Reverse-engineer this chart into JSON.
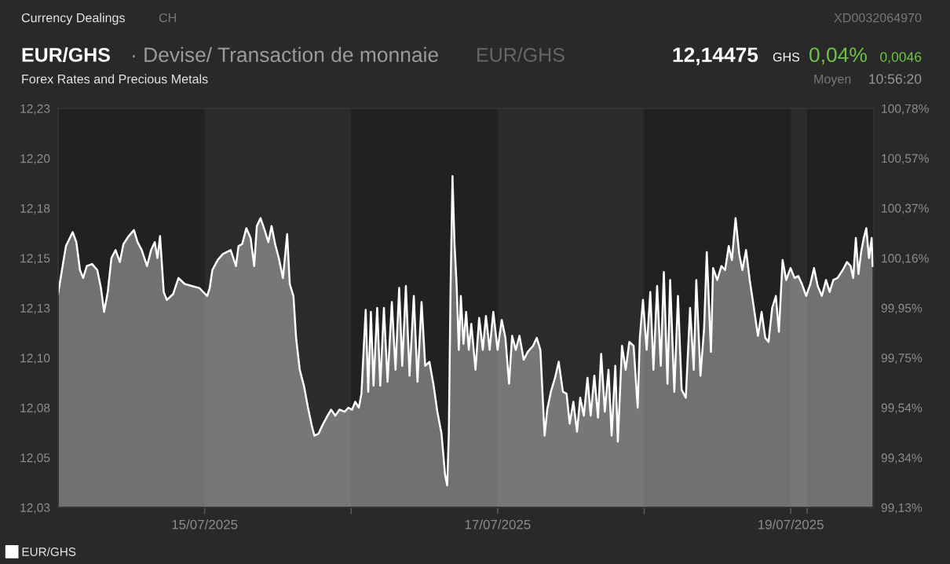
{
  "chart_data": {
    "type": "area",
    "title": "EUR/GHS",
    "subtitle": "· Devise/ Transaction de monnaie",
    "annotations": [
      "Currency Dealings",
      "CH",
      "XD0032064970",
      "EUR/GHS",
      "12,14475",
      "GHS",
      "0,04%",
      "0,0046",
      "Forex Rates and Precious Metals",
      "Moyen",
      "10:56:20"
    ],
    "x": [
      "2025-07-14T00:00",
      "2025-07-14T00:41",
      "2025-07-14T01:17",
      "2025-07-14T02:23",
      "2025-07-14T02:59",
      "2025-07-14T03:35",
      "2025-07-14T04:06",
      "2025-07-14T04:42",
      "2025-07-14T05:34",
      "2025-07-14T06:25",
      "2025-07-14T07:01",
      "2025-07-14T07:32",
      "2025-07-14T08:08",
      "2025-07-14T08:44",
      "2025-07-14T09:25",
      "2025-07-14T10:07",
      "2025-07-14T10:42",
      "2025-07-14T11:34",
      "2025-07-14T12:25",
      "2025-07-14T13:01",
      "2025-07-14T13:42",
      "2025-07-14T14:34",
      "2025-07-14T15:14",
      "2025-07-14T15:50",
      "2025-07-14T16:16",
      "2025-07-14T16:42",
      "2025-07-14T17:18",
      "2025-07-14T17:49",
      "2025-07-14T18:51",
      "2025-07-14T19:43",
      "2025-07-14T20:44",
      "2025-07-14T21:51",
      "2025-07-14T23:08",
      "2025-07-15T00:25",
      "2025-07-15T00:50",
      "2025-07-15T01:16",
      "2025-07-15T02:08",
      "2025-07-15T02:59",
      "2025-07-15T04:16",
      "2025-07-15T05:08",
      "2025-07-15T05:33",
      "2025-07-15T06:09",
      "2025-07-15T06:50",
      "2025-07-15T07:32",
      "2025-07-15T08:07",
      "2025-07-15T08:33",
      "2025-07-15T09:09",
      "2025-07-15T09:50",
      "2025-07-15T10:26",
      "2025-07-15T10:58",
      "2025-07-15T11:33",
      "2025-07-15T12:09",
      "2025-07-15T12:50",
      "2025-07-15T13:31",
      "2025-07-15T13:57",
      "2025-07-15T14:33",
      "2025-07-15T14:59",
      "2025-07-15T15:35",
      "2025-07-15T16:16",
      "2025-07-15T16:56",
      "2025-07-15T17:33",
      "2025-07-15T17:59",
      "2025-07-15T18:40",
      "2025-07-15T19:16",
      "2025-07-15T20:08",
      "2025-07-15T20:43",
      "2025-07-15T21:25",
      "2025-07-15T22:05",
      "2025-07-15T22:57",
      "2025-07-15T23:33",
      "2025-07-16T00:09",
      "2025-07-16T00:40",
      "2025-07-16T01:16",
      "2025-07-16T01:41",
      "2025-07-16T02:23",
      "2025-07-16T02:48",
      "2025-07-16T03:14",
      "2025-07-16T03:40",
      "2025-07-16T04:16",
      "2025-07-16T04:46",
      "2025-07-16T05:22",
      "2025-07-16T05:58",
      "2025-07-16T06:40",
      "2025-07-16T07:16",
      "2025-07-16T07:52",
      "2025-07-16T08:22",
      "2025-07-16T08:58",
      "2025-07-16T09:34",
      "2025-07-16T10:16",
      "2025-07-16T10:52",
      "2025-07-16T11:32",
      "2025-07-16T12:08",
      "2025-07-16T12:49",
      "2025-07-16T13:31",
      "2025-07-16T14:07",
      "2025-07-16T14:48",
      "2025-07-16T15:24",
      "2025-07-16T15:44",
      "2025-07-16T16:00",
      "2025-07-16T16:16",
      "2025-07-16T16:36",
      "2025-07-16T16:56",
      "2025-07-16T17:17",
      "2025-07-16T17:38",
      "2025-07-16T17:58",
      "2025-07-16T18:24",
      "2025-07-16T18:50",
      "2025-07-16T19:16",
      "2025-07-16T19:41",
      "2025-07-16T20:22",
      "2025-07-16T20:58",
      "2025-07-16T21:34",
      "2025-07-16T22:05",
      "2025-07-16T22:41",
      "2025-07-16T23:17",
      "2025-07-16T23:59",
      "2025-07-17T00:40",
      "2025-07-17T01:16",
      "2025-07-17T01:52",
      "2025-07-17T02:22",
      "2025-07-17T02:58",
      "2025-07-17T03:34",
      "2025-07-17T04:16",
      "2025-07-17T04:56",
      "2025-07-17T05:48",
      "2025-07-17T06:24",
      "2025-07-17T07:00",
      "2025-07-17T07:41",
      "2025-07-17T08:07",
      "2025-07-17T08:43",
      "2025-07-17T09:24",
      "2025-07-17T10:00",
      "2025-07-17T10:41",
      "2025-07-17T11:17",
      "2025-07-17T11:48",
      "2025-07-17T12:24",
      "2025-07-17T13:00",
      "2025-07-17T13:31",
      "2025-07-17T14:07",
      "2025-07-17T14:43",
      "2025-07-17T15:14",
      "2025-07-17T15:50",
      "2025-07-17T16:26",
      "2025-07-17T16:57",
      "2025-07-17T17:33",
      "2025-07-17T18:09",
      "2025-07-17T18:40",
      "2025-07-17T19:16",
      "2025-07-17T19:41",
      "2025-07-17T20:22",
      "2025-07-17T20:58",
      "2025-07-17T21:34",
      "2025-07-17T22:16",
      "2025-07-17T22:56",
      "2025-07-17T23:17",
      "2025-07-17T23:48",
      "2025-07-18T00:24",
      "2025-07-18T01:00",
      "2025-07-18T01:31",
      "2025-07-18T02:07",
      "2025-07-18T02:43",
      "2025-07-18T03:13",
      "2025-07-18T03:49",
      "2025-07-18T04:15",
      "2025-07-18T04:56",
      "2025-07-18T05:32",
      "2025-07-18T06:08",
      "2025-07-18T06:49",
      "2025-07-18T07:31",
      "2025-07-18T08:07",
      "2025-07-18T08:32",
      "2025-07-18T09:13",
      "2025-07-18T09:49",
      "2025-07-18T10:15",
      "2025-07-18T10:56",
      "2025-07-18T11:17",
      "2025-07-18T11:58",
      "2025-07-18T12:39",
      "2025-07-18T13:15",
      "2025-07-18T13:51",
      "2025-07-18T14:22",
      "2025-07-18T14:58",
      "2025-07-18T15:34",
      "2025-07-18T16:05",
      "2025-07-18T16:41",
      "2025-07-18T17:17",
      "2025-07-18T17:58",
      "2025-07-18T18:38",
      "2025-07-18T19:14",
      "2025-07-18T19:50",
      "2025-07-18T20:22",
      "2025-07-18T20:58",
      "2025-07-18T21:34",
      "2025-07-18T22:04",
      "2025-07-18T22:40",
      "2025-07-18T23:16",
      "2025-07-18T23:58",
      "2025-07-19T00:38",
      "2025-07-19T01:14",
      "2025-07-19T01:50",
      "2025-07-19T02:32",
      "2025-07-19T03:13",
      "2025-07-19T03:49",
      "2025-07-19T04:25",
      "2025-07-19T05:06",
      "2025-07-19T05:47",
      "2025-07-19T06:23",
      "2025-07-19T06:59",
      "2025-07-19T07:40",
      "2025-07-19T08:31",
      "2025-07-19T09:13",
      "2025-07-19T09:49",
      "2025-07-19T10:14",
      "2025-07-19T10:40",
      "2025-07-19T11:06",
      "2025-07-19T11:32",
      "2025-07-19T11:58",
      "2025-07-19T12:23",
      "2025-07-19T12:49",
      "2025-07-19T13:15",
      "2025-07-19T13:25"
    ],
    "series": [
      {
        "name": "EUR/GHS",
        "color": "#ffffff",
        "values": [
          12.137,
          12.15,
          12.161,
          12.168,
          12.163,
          12.149,
          12.145,
          12.151,
          12.152,
          12.149,
          12.14,
          12.128,
          12.138,
          12.155,
          12.159,
          12.153,
          12.162,
          12.166,
          12.169,
          12.163,
          12.159,
          12.151,
          12.159,
          12.163,
          12.155,
          12.166,
          12.138,
          12.134,
          12.137,
          12.145,
          12.142,
          12.141,
          12.14,
          12.136,
          12.14,
          12.149,
          12.154,
          12.157,
          12.159,
          12.151,
          12.161,
          12.162,
          12.17,
          12.165,
          12.151,
          12.171,
          12.175,
          12.169,
          12.163,
          12.171,
          12.162,
          12.155,
          12.145,
          12.167,
          12.142,
          12.136,
          12.115,
          12.099,
          12.091,
          12.08,
          12.071,
          12.066,
          12.067,
          12.071,
          12.076,
          12.079,
          12.076,
          12.079,
          12.078,
          12.08,
          12.079,
          12.083,
          12.08,
          12.087,
          12.129,
          12.088,
          12.128,
          12.091,
          12.13,
          12.091,
          12.13,
          12.093,
          12.133,
          12.099,
          12.14,
          12.101,
          12.141,
          12.096,
          12.136,
          12.093,
          12.133,
          12.101,
          12.103,
          12.091,
          12.078,
          12.067,
          12.046,
          12.041,
          12.067,
          12.136,
          12.196,
          12.162,
          12.141,
          12.109,
          12.136,
          12.112,
          12.128,
          12.109,
          12.122,
          12.099,
          12.125,
          12.109,
          12.126,
          12.109,
          12.128,
          12.109,
          12.124,
          12.115,
          12.092,
          12.116,
          12.109,
          12.116,
          12.104,
          12.108,
          12.111,
          12.115,
          12.109,
          12.066,
          12.079,
          12.088,
          12.095,
          12.103,
          12.088,
          12.087,
          12.072,
          12.083,
          12.068,
          12.085,
          12.076,
          12.095,
          12.076,
          12.096,
          12.075,
          12.107,
          12.078,
          12.099,
          12.066,
          12.101,
          12.063,
          12.111,
          12.099,
          12.113,
          12.111,
          12.08,
          12.115,
          12.134,
          12.109,
          12.138,
          12.099,
          12.141,
          12.101,
          12.148,
          12.092,
          12.144,
          12.088,
          12.136,
          12.089,
          12.085,
          12.13,
          12.099,
          12.144,
          12.096,
          12.12,
          12.158,
          12.108,
          12.15,
          12.144,
          12.151,
          12.149,
          12.161,
          12.154,
          12.175,
          12.157,
          12.149,
          12.159,
          12.144,
          12.13,
          12.116,
          12.128,
          12.115,
          12.113,
          12.13,
          12.136,
          12.118,
          12.154,
          12.144,
          12.15,
          12.145,
          12.146,
          12.142,
          12.136,
          12.142,
          12.15,
          12.141,
          12.136,
          12.144,
          12.138,
          12.144,
          12.145,
          12.149,
          12.153,
          12.151,
          12.145,
          12.165,
          12.147,
          12.158,
          12.165,
          12.17,
          12.155,
          12.165,
          12.151
        ]
      }
    ],
    "xlim": [
      "2025-07-14T00:00",
      "2025-07-19T13:40"
    ],
    "xticks": [
      {
        "value": "2025-07-15T00:00",
        "label": "15/07/2025"
      },
      {
        "value": "2025-07-16T00:00",
        "label": null
      },
      {
        "value": "2025-07-17T00:00",
        "label": "17/07/2025"
      },
      {
        "value": "2025-07-18T00:00",
        "label": null
      },
      {
        "value": "2025-07-19T00:00",
        "label": "19/07/2025"
      },
      {
        "value": "2025-07-19T02:40",
        "label": null
      }
    ],
    "ylim": [
      12.03,
      12.23
    ],
    "yticks": [
      {
        "value": 12.03,
        "label": "12,03"
      },
      {
        "value": 12.055,
        "label": "12,05"
      },
      {
        "value": 12.08,
        "label": "12,08"
      },
      {
        "value": 12.105,
        "label": "12,10"
      },
      {
        "value": 12.13,
        "label": "12,13"
      },
      {
        "value": 12.155,
        "label": "12,15"
      },
      {
        "value": 12.18,
        "label": "12,18"
      },
      {
        "value": 12.205,
        "label": "12,20"
      },
      {
        "value": 12.23,
        "label": "12,23"
      }
    ],
    "y2lim": [
      99.13,
      100.78
    ],
    "y2ticks": [
      {
        "value": 99.13,
        "label": "99,13%"
      },
      {
        "value": 99.336,
        "label": "99,34%"
      },
      {
        "value": 99.543,
        "label": "99,54%"
      },
      {
        "value": 99.749,
        "label": "99,75%"
      },
      {
        "value": 99.955,
        "label": "99,95%"
      },
      {
        "value": 100.161,
        "label": "100,16%"
      },
      {
        "value": 100.368,
        "label": "100,37%"
      },
      {
        "value": 100.574,
        "label": "100,57%"
      },
      {
        "value": 100.78,
        "label": "100,78%"
      }
    ],
    "bands": [
      {
        "axis": "x",
        "from": "2025-07-15T00:00",
        "to": "2025-07-16T00:00",
        "color": "#2b2b2b"
      },
      {
        "axis": "x",
        "from": "2025-07-17T00:00",
        "to": "2025-07-18T00:00",
        "color": "#2b2b2b"
      },
      {
        "axis": "x",
        "from": "2025-07-19T00:00",
        "to": "2025-07-19T02:40",
        "color": "#2b2b2b"
      }
    ],
    "grid": false,
    "legend": "bottom left"
  }
}
